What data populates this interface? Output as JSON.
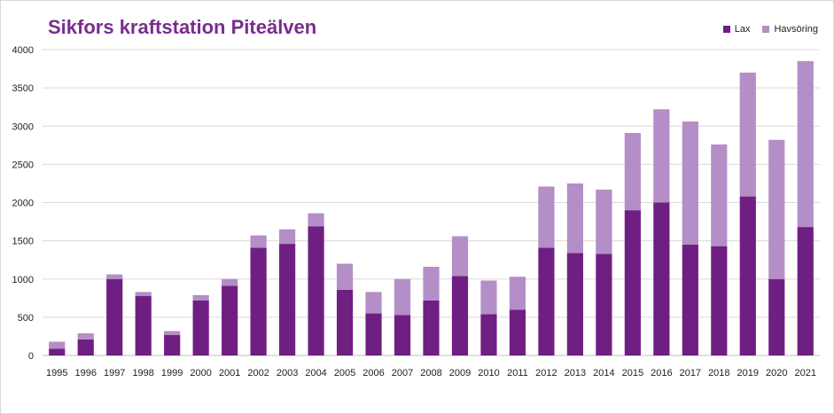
{
  "chart_data": {
    "type": "bar",
    "stacked": true,
    "title": "Sikfors kraftstation Piteälven",
    "xlabel": "",
    "ylabel": "",
    "ylim": [
      0,
      4000
    ],
    "yticks": [
      0,
      500,
      1000,
      1500,
      2000,
      2500,
      3000,
      3500,
      4000
    ],
    "grid": true,
    "legend_position": "top-right",
    "categories": [
      "1995",
      "1996",
      "1997",
      "1998",
      "1999",
      "2000",
      "2001",
      "2002",
      "2003",
      "2004",
      "2005",
      "2006",
      "2007",
      "2008",
      "2009",
      "2010",
      "2011",
      "2012",
      "2013",
      "2014",
      "2015",
      "2016",
      "2017",
      "2018",
      "2019",
      "2020",
      "2021"
    ],
    "series": [
      {
        "name": "Lax",
        "color": "#6f1f82",
        "values": [
          90,
          210,
          1000,
          780,
          270,
          720,
          910,
          1410,
          1460,
          1690,
          860,
          550,
          530,
          720,
          1040,
          540,
          600,
          1410,
          1340,
          1330,
          1900,
          2000,
          1450,
          1430,
          2080,
          1000,
          1680
        ]
      },
      {
        "name": "Havsöring",
        "color": "#b48ec6",
        "values": [
          90,
          80,
          60,
          50,
          50,
          70,
          90,
          160,
          190,
          170,
          340,
          280,
          470,
          440,
          520,
          440,
          430,
          800,
          910,
          840,
          1010,
          1220,
          1610,
          1330,
          1620,
          1820,
          2170
        ]
      }
    ]
  }
}
